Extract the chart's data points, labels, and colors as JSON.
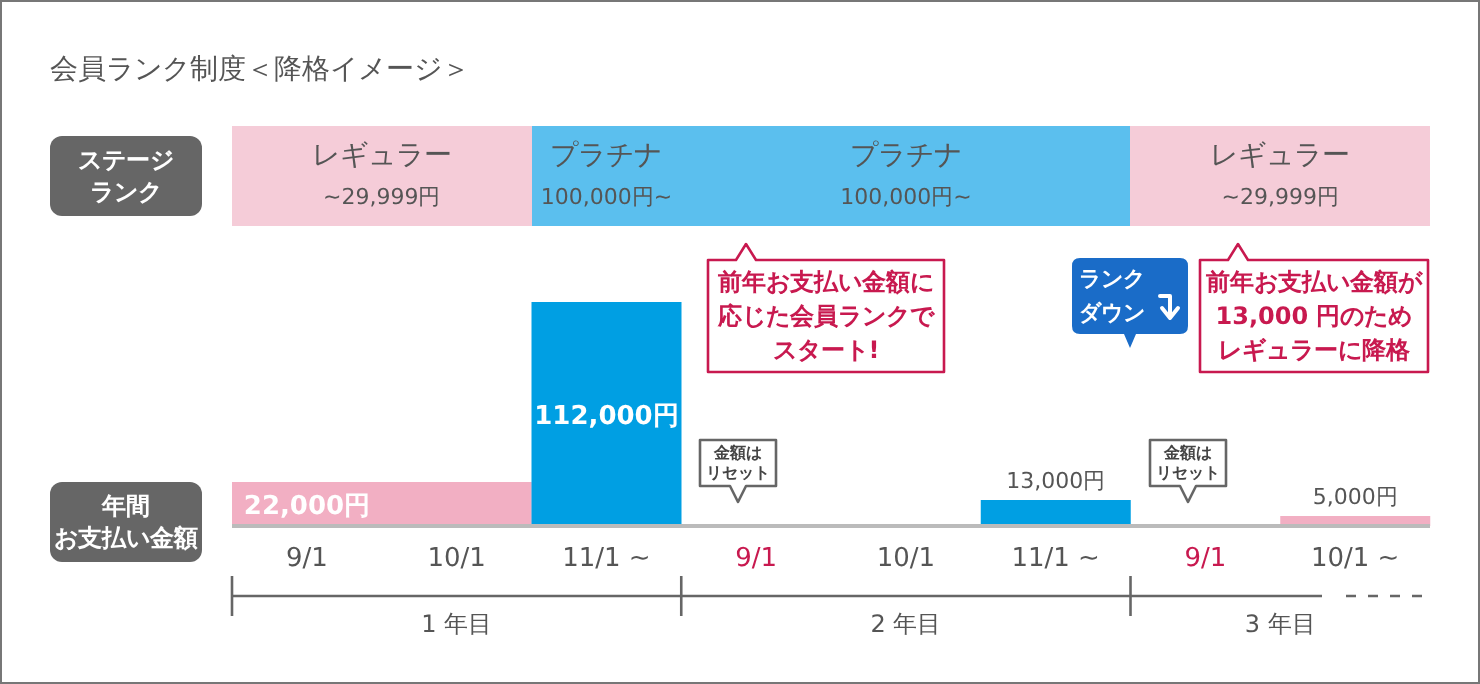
{
  "chart_data": {
    "type": "bar",
    "title": "会員ランク制度＜降格イメージ＞",
    "ylabel": "年間お支払い金額",
    "categories": [
      "9/1",
      "10/1",
      "11/1 ~",
      "9/1",
      "10/1",
      "11/1 ~",
      "9/1",
      "10/1 ~"
    ],
    "values": [
      22000,
      22000,
      112000,
      null,
      null,
      13000,
      null,
      5000
    ],
    "colors": [
      "#f2afc3",
      "#f2afc3",
      "#009fe3",
      null,
      null,
      "#009fe3",
      null,
      "#f2afc3"
    ],
    "value_labels": [
      "22,000円",
      null,
      "112,000円",
      null,
      null,
      "13,000円",
      null,
      "5,000円"
    ],
    "annotations": [
      "1 年目",
      "2 年目",
      "3 年目",
      "前年お支払い金額に応じた会員ランクでスタート!",
      "ランクダウン",
      "前年お支払い金額が13,000 円のためレギュラーに降格",
      "金額はリセット",
      "金額はリセット",
      "ステージランク",
      "レギュラー",
      "~29,999円",
      "プラチナ",
      "100,000円~",
      "プラチナ",
      "100,000円~",
      "レギュラー",
      "~29,999円"
    ]
  }
}
